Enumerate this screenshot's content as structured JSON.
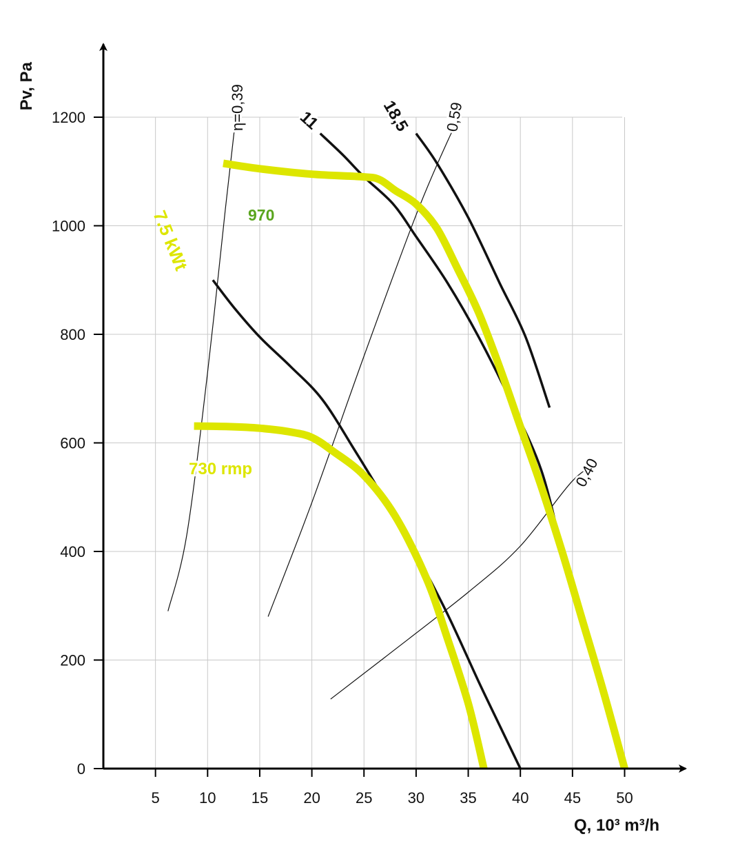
{
  "chart_data": {
    "type": "line",
    "xlabel": "Q, 10³ m³/h",
    "ylabel": "Pv, Pa",
    "xlim": [
      0,
      50
    ],
    "ylim": [
      0,
      1300
    ],
    "grid": true,
    "x_ticks": [
      5,
      10,
      15,
      20,
      25,
      30,
      35,
      40,
      45,
      50
    ],
    "y_ticks": [
      0,
      200,
      400,
      600,
      800,
      1000,
      1200
    ],
    "colors": {
      "fan": "#dde600",
      "fan_label_green": "#5aa51e",
      "power": "#111111",
      "grid": "#c8c8c8"
    },
    "series": [
      {
        "name": "970",
        "kind": "fan",
        "label_color": "#5aa51e",
        "points": [
          [
            11.5,
            1115
          ],
          [
            15,
            1105
          ],
          [
            20,
            1095
          ],
          [
            25,
            1090
          ],
          [
            26.5,
            1085
          ],
          [
            28,
            1065
          ],
          [
            30,
            1040
          ],
          [
            32,
            995
          ],
          [
            34,
            920
          ],
          [
            36,
            840
          ],
          [
            38,
            740
          ],
          [
            40,
            630
          ],
          [
            42,
            520
          ],
          [
            44,
            400
          ],
          [
            46,
            270
          ],
          [
            48,
            140
          ],
          [
            50,
            0
          ]
        ]
      },
      {
        "name": "730 rmp",
        "kind": "fan",
        "label_color": "#dde600",
        "points": [
          [
            8.7,
            631
          ],
          [
            12,
            630
          ],
          [
            15,
            627
          ],
          [
            18,
            620
          ],
          [
            20,
            610
          ],
          [
            22,
            585
          ],
          [
            25,
            540
          ],
          [
            28,
            465
          ],
          [
            31,
            350
          ],
          [
            33,
            240
          ],
          [
            35,
            120
          ],
          [
            36.5,
            0
          ]
        ]
      },
      {
        "name": "7.5 kWt",
        "kind": "power",
        "label_color": "#dde600",
        "points": [
          [
            10.5,
            900
          ],
          [
            12.5,
            850
          ],
          [
            15,
            795
          ],
          [
            18,
            740
          ],
          [
            21,
            680
          ],
          [
            24,
            590
          ],
          [
            27,
            495
          ],
          [
            30,
            395
          ],
          [
            33,
            285
          ],
          [
            36,
            160
          ],
          [
            38,
            80
          ],
          [
            40,
            0
          ]
        ]
      },
      {
        "name": "11",
        "kind": "power",
        "label_color": "#111111",
        "points": [
          [
            20.8,
            1170
          ],
          [
            23,
            1130
          ],
          [
            25,
            1090
          ],
          [
            27.8,
            1040
          ],
          [
            30,
            980
          ],
          [
            33,
            895
          ],
          [
            36,
            795
          ],
          [
            39,
            680
          ],
          [
            42,
            550
          ],
          [
            44,
            400
          ]
        ]
      },
      {
        "name": "18,5",
        "kind": "power",
        "label_color": "#111111",
        "points": [
          [
            30,
            1170
          ],
          [
            32,
            1115
          ],
          [
            35,
            1015
          ],
          [
            38,
            895
          ],
          [
            40.5,
            795
          ],
          [
            42.8,
            665
          ]
        ]
      }
    ],
    "efficiency_lines": [
      {
        "label": "η=0,39",
        "points": [
          [
            6.2,
            290
          ],
          [
            8,
            430
          ],
          [
            10,
            730
          ],
          [
            11.7,
            1030
          ],
          [
            12.7,
            1200
          ]
        ]
      },
      {
        "label": "0,59",
        "points": [
          [
            15.8,
            280
          ],
          [
            20,
            490
          ],
          [
            25,
            760
          ],
          [
            30,
            1020
          ],
          [
            33,
            1155
          ],
          [
            34.3,
            1205
          ]
        ]
      },
      {
        "label": "0,40",
        "points": [
          [
            21.8,
            128
          ],
          [
            27,
            205
          ],
          [
            35,
            325
          ],
          [
            40,
            410
          ],
          [
            45,
            530
          ],
          [
            47.5,
            562
          ]
        ]
      }
    ]
  }
}
